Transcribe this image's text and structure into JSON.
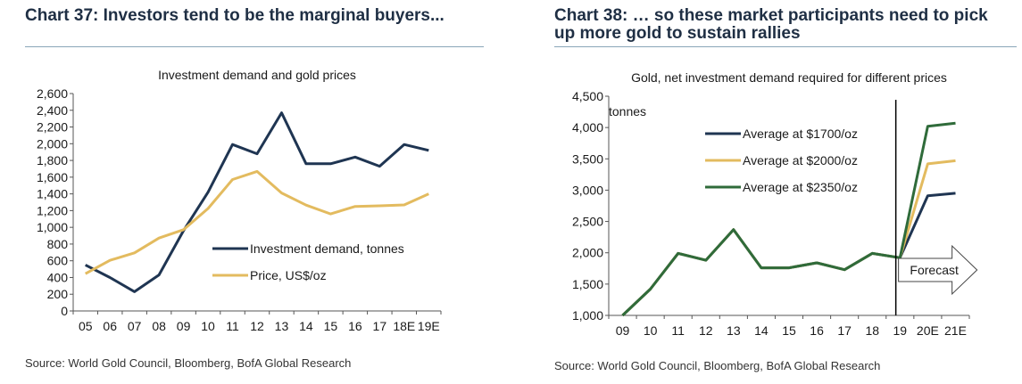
{
  "left_panel": {
    "heading": "Chart 37: Investors tend to be the marginal buyers...",
    "source": "Source: World Gold Council, Bloomberg, BofA Global Research"
  },
  "right_panel": {
    "heading_line1": "Chart 38: … so these market participants need to pick",
    "heading_line2": "up more gold to sustain rallies",
    "source": "Source: World Gold Council, Bloomberg, BofA Global Research",
    "forecast_label": "Forecast",
    "unit_label": "tonnes"
  },
  "colors": {
    "navy": "#1f3552",
    "gold": "#e3bb5f",
    "green": "#2f6b3a",
    "heading": "#1f2f44"
  },
  "chart_data": [
    {
      "type": "line",
      "title": "Investment demand and gold prices",
      "categories": [
        "05",
        "06",
        "07",
        "08",
        "09",
        "10",
        "11",
        "12",
        "13",
        "14",
        "15",
        "16",
        "17",
        "18E",
        "19E"
      ],
      "ylim": [
        0,
        2600
      ],
      "yticks": [
        "0",
        "200",
        "400",
        "600",
        "800",
        "1,000",
        "1,200",
        "1,400",
        "1,600",
        "1,800",
        "2,000",
        "2,200",
        "2,400",
        "2,600"
      ],
      "grid": false,
      "legend_position": "center-right",
      "series": [
        {
          "name": "Investment demand, tonnes",
          "color": "#1f3552",
          "values": [
            550,
            400,
            230,
            430,
            960,
            1420,
            1990,
            1880,
            2370,
            1760,
            1760,
            1840,
            1730,
            1990,
            1920
          ]
        },
        {
          "name": "Price, US$/oz",
          "color": "#e3bb5f",
          "values": [
            445,
            605,
            695,
            872,
            972,
            1225,
            1572,
            1669,
            1411,
            1266,
            1160,
            1250,
            1257,
            1268,
            1400
          ]
        }
      ]
    },
    {
      "type": "line",
      "title": "Gold, net investment demand required for different prices",
      "categories": [
        "09",
        "10",
        "11",
        "12",
        "13",
        "14",
        "15",
        "16",
        "17",
        "18",
        "19",
        "20E",
        "21E"
      ],
      "ylim": [
        1000,
        4500
      ],
      "yticks": [
        "1,000",
        "1,500",
        "2,000",
        "2,500",
        "3,000",
        "3,500",
        "4,000",
        "4,500"
      ],
      "grid": false,
      "legend_position": "top-center",
      "series": [
        {
          "name": "Average at $1700/oz",
          "color": "#1f3552",
          "values": [
            1000,
            1420,
            1990,
            1880,
            2370,
            1760,
            1760,
            1840,
            1730,
            1990,
            1920,
            2910,
            2950
          ]
        },
        {
          "name": "Average at $2000/oz",
          "color": "#e3bb5f",
          "values": [
            1000,
            1420,
            1990,
            1880,
            2370,
            1760,
            1760,
            1840,
            1730,
            1990,
            1920,
            3420,
            3470
          ]
        },
        {
          "name": "Average at $2350/oz",
          "color": "#2f6b3a",
          "values": [
            1000,
            1420,
            1990,
            1880,
            2370,
            1760,
            1760,
            1840,
            1730,
            1990,
            1920,
            4020,
            4070
          ]
        }
      ]
    }
  ]
}
